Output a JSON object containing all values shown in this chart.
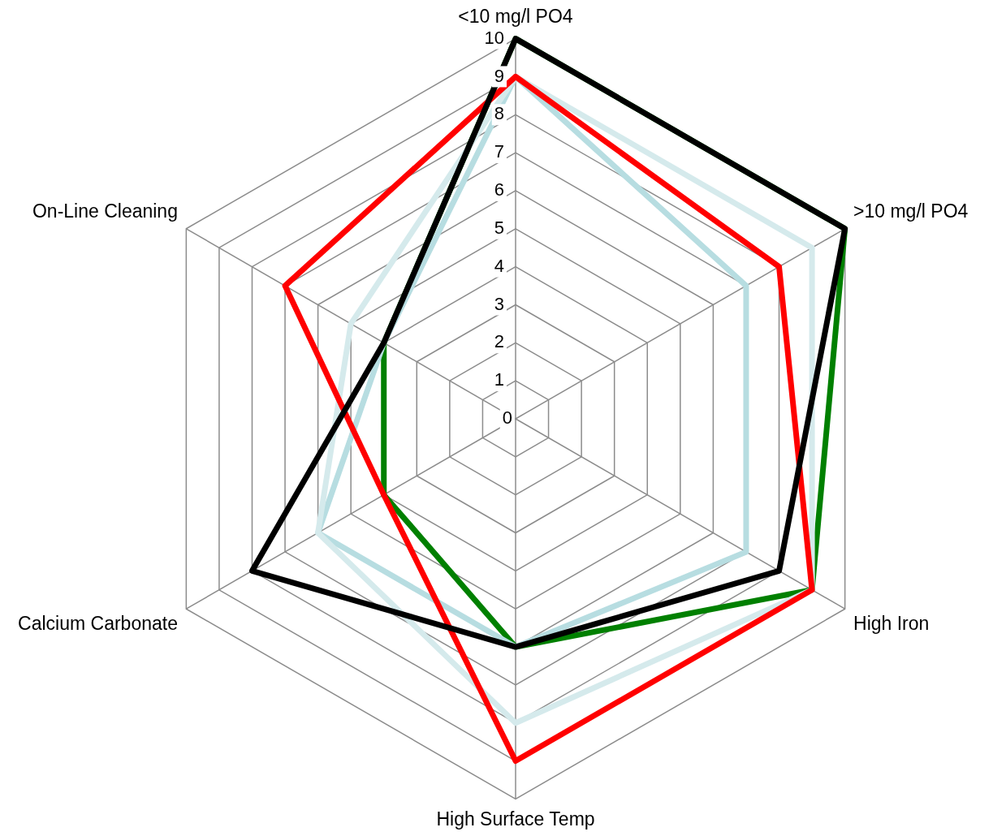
{
  "chart_data": {
    "type": "radar",
    "categories": [
      "<10 mg/l PO4",
      ">10 mg/l PO4",
      "High Iron",
      "High Surface Temp",
      "Calcium Carbonate",
      "On-Line Cleaning"
    ],
    "ylim": [
      0,
      10
    ],
    "yticks": [
      0,
      1,
      2,
      3,
      4,
      5,
      6,
      7,
      8,
      9,
      10
    ],
    "grid": true,
    "legend": false,
    "marker": "none",
    "line_style": "solid",
    "series": [
      {
        "color": "#000000",
        "values": [
          10,
          10,
          8,
          6,
          8,
          4
        ]
      },
      {
        "color": "#ff0000",
        "values": [
          9,
          8,
          9,
          9,
          4,
          7
        ]
      },
      {
        "color": "#d5eaec",
        "values": [
          9,
          9,
          9,
          8,
          6,
          5
        ]
      },
      {
        "color": "#b7dde1",
        "values": [
          9,
          7,
          7,
          6,
          6,
          4
        ]
      },
      {
        "color": "#008000",
        "values": [
          10,
          10,
          9,
          6,
          4,
          4
        ]
      }
    ]
  }
}
